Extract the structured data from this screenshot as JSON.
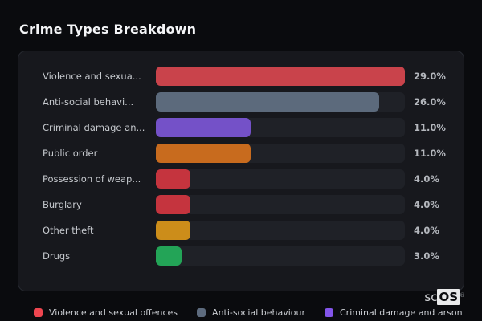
{
  "page": {
    "title": "Crime Types Breakdown"
  },
  "chart_data": {
    "type": "bar",
    "orientation": "horizontal",
    "title": "Crime Types Breakdown",
    "categories": [
      "Violence and sexua...",
      "Anti-social behavi...",
      "Criminal damage an...",
      "Public order",
      "Possession of weap...",
      "Burglary",
      "Other theft",
      "Drugs"
    ],
    "values": [
      29.0,
      26.0,
      11.0,
      11.0,
      4.0,
      4.0,
      4.0,
      3.0
    ],
    "value_labels": [
      "29.0%",
      "26.0%",
      "11.0%",
      "11.0%",
      "4.0%",
      "4.0%",
      "4.0%",
      "3.0%"
    ],
    "bar_colors": [
      "#c9434b",
      "#5c6a7c",
      "#7451c8",
      "#c86b1e",
      "#c5343e",
      "#c5343e",
      "#cc8d1a",
      "#23a457"
    ],
    "xlim": [
      0,
      29
    ],
    "track_color": "#1f2127",
    "grid": false,
    "legend_position": "bottom",
    "legend": [
      {
        "label": "Violence and sexual offences",
        "color": "#ee4650"
      },
      {
        "label": "Anti-social behaviour",
        "color": "#5d6b7e"
      },
      {
        "label": "Criminal damage and arson",
        "color": "#8355ea"
      }
    ]
  },
  "brand": {
    "prefix": "sc",
    "suffix": "OS",
    "registered": "®"
  }
}
